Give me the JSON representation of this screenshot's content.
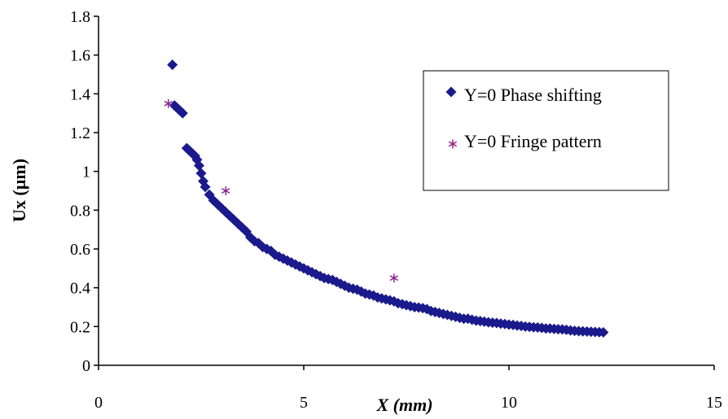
{
  "chart_data": {
    "type": "scatter",
    "xlabel": "X (mm)",
    "ylabel": "Ux (µm)",
    "xlim": [
      0,
      15
    ],
    "ylim": [
      0,
      1.8
    ],
    "x_ticks": [
      "0",
      "5",
      "10",
      "15"
    ],
    "y_ticks": [
      "0",
      "0.2",
      "0.4",
      "0.6",
      "0.8",
      "1",
      "1.2",
      "1.4",
      "1.6",
      "1.8"
    ],
    "grid": false,
    "legend_position": "top-right",
    "series": [
      {
        "name": "Y=0 Phase shifting",
        "marker": "diamond",
        "color": "#1a1a8c",
        "points": [
          [
            1.8,
            1.55
          ],
          [
            1.85,
            1.34
          ],
          [
            1.9,
            1.33
          ],
          [
            1.95,
            1.32
          ],
          [
            2.0,
            1.31
          ],
          [
            2.05,
            1.3
          ],
          [
            2.15,
            1.12
          ],
          [
            2.2,
            1.11
          ],
          [
            2.25,
            1.1
          ],
          [
            2.3,
            1.09
          ],
          [
            2.35,
            1.08
          ],
          [
            2.4,
            1.06
          ],
          [
            2.45,
            1.03
          ],
          [
            2.5,
            0.99
          ],
          [
            2.55,
            0.95
          ],
          [
            2.6,
            0.92
          ],
          [
            2.7,
            0.88
          ],
          [
            2.8,
            0.85
          ],
          [
            2.9,
            0.83
          ],
          [
            3.0,
            0.81
          ],
          [
            3.1,
            0.79
          ],
          [
            3.2,
            0.77
          ],
          [
            3.3,
            0.75
          ],
          [
            3.4,
            0.73
          ],
          [
            3.5,
            0.71
          ],
          [
            3.6,
            0.69
          ],
          [
            3.7,
            0.66
          ],
          [
            3.8,
            0.64
          ],
          [
            3.9,
            0.63
          ],
          [
            4.0,
            0.61
          ],
          [
            4.1,
            0.6
          ],
          [
            4.2,
            0.59
          ],
          [
            4.3,
            0.57
          ],
          [
            4.4,
            0.56
          ],
          [
            4.5,
            0.55
          ],
          [
            4.6,
            0.54
          ],
          [
            4.7,
            0.53
          ],
          [
            4.8,
            0.52
          ],
          [
            4.9,
            0.51
          ],
          [
            5.0,
            0.5
          ],
          [
            5.1,
            0.49
          ],
          [
            5.2,
            0.48
          ],
          [
            5.3,
            0.47
          ],
          [
            5.4,
            0.46
          ],
          [
            5.5,
            0.45
          ],
          [
            5.6,
            0.445
          ],
          [
            5.7,
            0.44
          ],
          [
            5.8,
            0.43
          ],
          [
            5.9,
            0.42
          ],
          [
            6.0,
            0.41
          ],
          [
            6.1,
            0.4
          ],
          [
            6.2,
            0.395
          ],
          [
            6.3,
            0.39
          ],
          [
            6.4,
            0.38
          ],
          [
            6.5,
            0.37
          ],
          [
            6.6,
            0.365
          ],
          [
            6.7,
            0.36
          ],
          [
            6.8,
            0.35
          ],
          [
            6.9,
            0.345
          ],
          [
            7.0,
            0.34
          ],
          [
            7.1,
            0.335
          ],
          [
            7.2,
            0.33
          ],
          [
            7.3,
            0.32
          ],
          [
            7.4,
            0.315
          ],
          [
            7.5,
            0.31
          ],
          [
            7.6,
            0.305
          ],
          [
            7.7,
            0.3
          ],
          [
            7.8,
            0.298
          ],
          [
            7.9,
            0.295
          ],
          [
            8.0,
            0.29
          ],
          [
            8.1,
            0.28
          ],
          [
            8.2,
            0.275
          ],
          [
            8.3,
            0.27
          ],
          [
            8.4,
            0.265
          ],
          [
            8.5,
            0.26
          ],
          [
            8.6,
            0.255
          ],
          [
            8.7,
            0.25
          ],
          [
            8.8,
            0.245
          ],
          [
            8.9,
            0.24
          ],
          [
            9.0,
            0.24
          ],
          [
            9.1,
            0.235
          ],
          [
            9.2,
            0.23
          ],
          [
            9.3,
            0.228
          ],
          [
            9.4,
            0.225
          ],
          [
            9.5,
            0.222
          ],
          [
            9.6,
            0.22
          ],
          [
            9.7,
            0.218
          ],
          [
            9.8,
            0.215
          ],
          [
            9.9,
            0.213
          ],
          [
            10.0,
            0.21
          ],
          [
            10.1,
            0.208
          ],
          [
            10.2,
            0.205
          ],
          [
            10.3,
            0.203
          ],
          [
            10.4,
            0.2
          ],
          [
            10.5,
            0.198
          ],
          [
            10.6,
            0.196
          ],
          [
            10.7,
            0.195
          ],
          [
            10.8,
            0.193
          ],
          [
            10.9,
            0.19
          ],
          [
            11.0,
            0.19
          ],
          [
            11.1,
            0.188
          ],
          [
            11.2,
            0.186
          ],
          [
            11.3,
            0.185
          ],
          [
            11.4,
            0.183
          ],
          [
            11.5,
            0.18
          ],
          [
            11.6,
            0.178
          ],
          [
            11.7,
            0.176
          ],
          [
            11.8,
            0.175
          ],
          [
            11.9,
            0.174
          ],
          [
            12.0,
            0.173
          ],
          [
            12.1,
            0.172
          ],
          [
            12.2,
            0.171
          ],
          [
            12.3,
            0.17
          ]
        ]
      },
      {
        "name": "Y=0 Fringe pattern",
        "marker": "asterisk",
        "color": "#8b1a8b",
        "points": [
          [
            1.7,
            1.35
          ],
          [
            3.1,
            0.9
          ],
          [
            7.2,
            0.45
          ]
        ]
      }
    ]
  }
}
